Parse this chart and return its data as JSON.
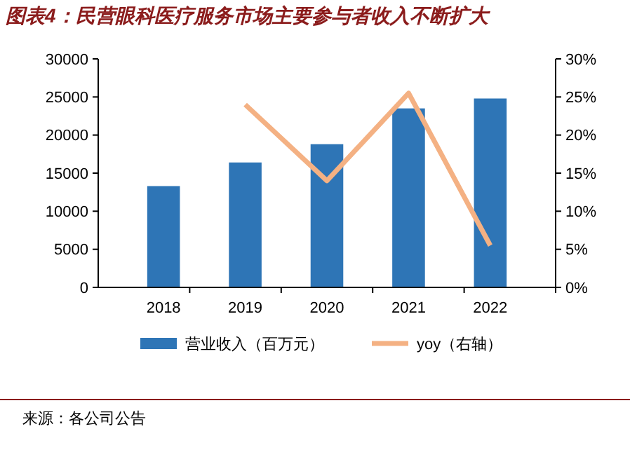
{
  "chart_data": {
    "type": "bar",
    "title": "图表4：民营眼科医疗服务市场主要参与者收入不断扩大",
    "categories": [
      "2018",
      "2019",
      "2020",
      "2021",
      "2022"
    ],
    "series": [
      {
        "name": "营业收入（百万元）",
        "color": "#2e75b6",
        "values": [
          13300,
          16400,
          18800,
          23500,
          24800
        ]
      },
      {
        "name": "yoy（右轴）",
        "type": "line",
        "axis": "y2",
        "color": "#f4b183",
        "values": [
          null,
          24,
          14,
          25.5,
          5.5
        ]
      }
    ],
    "ylim": [
      0,
      30000
    ],
    "yticks": [
      0,
      5000,
      10000,
      15000,
      20000,
      25000,
      30000
    ],
    "y2lim": [
      0,
      30
    ],
    "y2ticks": [
      {
        "value": 0,
        "label": "0%"
      },
      {
        "value": 5,
        "label": "5%"
      },
      {
        "value": 10,
        "label": "10%"
      },
      {
        "value": 15,
        "label": "15%"
      },
      {
        "value": 20,
        "label": "20%"
      },
      {
        "value": 25,
        "label": "25%"
      },
      {
        "value": 30,
        "label": "30%"
      }
    ],
    "legend": "bottom",
    "grid": false,
    "marker": "none",
    "annotations": [
      "来源：各公司公告"
    ]
  }
}
